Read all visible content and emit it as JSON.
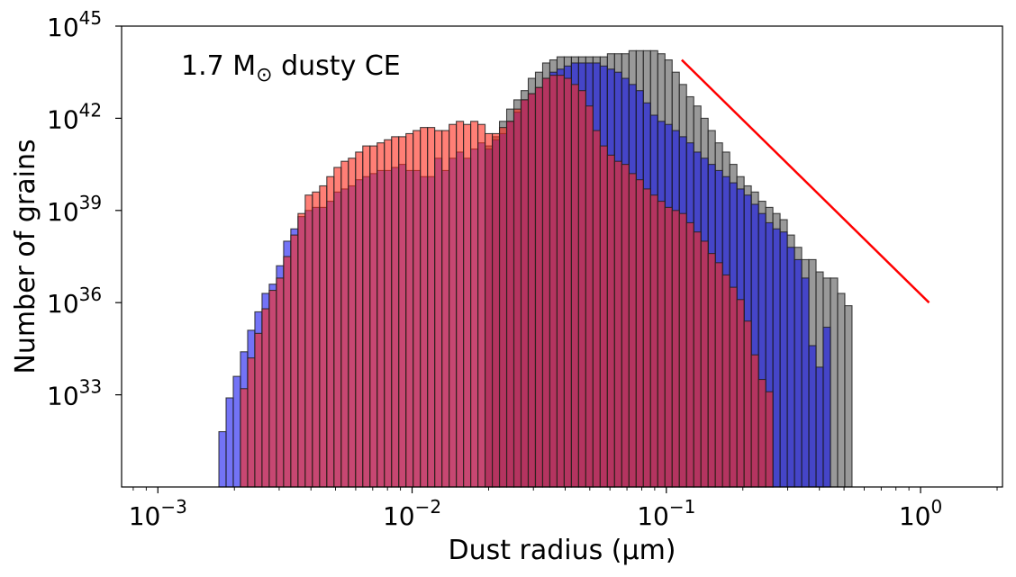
{
  "chart_data": {
    "type": "bar",
    "annotation": {
      "text": "1.7 M",
      "sub": "⊙",
      "tail": " dusty CE"
    },
    "xlabel": "Dust radius (μm)",
    "ylabel": "Number of grains",
    "xscale": "log",
    "yscale": "log",
    "xlim": [
      0.00072,
      2.1
    ],
    "ylim": [
      1e+30,
      1e+45
    ],
    "x_ticks": [
      {
        "value": 0.001,
        "base": "10",
        "exp": "−3"
      },
      {
        "value": 0.01,
        "base": "10",
        "exp": "−2"
      },
      {
        "value": 0.1,
        "base": "10",
        "exp": "−1"
      },
      {
        "value": 1,
        "base": "10",
        "exp": "0"
      }
    ],
    "y_ticks": [
      {
        "value": 1e+33,
        "base": "10",
        "exp": "33"
      },
      {
        "value": 1e+36,
        "base": "10",
        "exp": "36"
      },
      {
        "value": 1e+39,
        "base": "10",
        "exp": "39"
      },
      {
        "value": 1e+42,
        "base": "10",
        "exp": "42"
      },
      {
        "value": 1e+45,
        "base": "10",
        "exp": "45"
      }
    ],
    "bins": {
      "log10_start": -2.76,
      "log10_step": 0.0283
    },
    "series": [
      {
        "color": "#808080",
        "fill_opacity": 0.8,
        "start_bin": 37,
        "log10_values": [
          41.1,
          41.4,
          41.9,
          42.3,
          42.6,
          42.9,
          43.3,
          43.5,
          43.8,
          43.9,
          44.0,
          44.0,
          44.0,
          44.0,
          44.0,
          44.0,
          44.0,
          44.1,
          44.1,
          44.1,
          44.2,
          44.2,
          44.2,
          44.2,
          44.1,
          43.9,
          43.5,
          43.1,
          42.7,
          42.4,
          42.0,
          41.6,
          41.2,
          40.9,
          40.5,
          40.1,
          39.8,
          39.6,
          39.3,
          39.1,
          38.9,
          38.7,
          38.2,
          37.8,
          37.4,
          37.4,
          37.0,
          36.8,
          36.8,
          36.3,
          35.9
        ]
      },
      {
        "color": "#0000ee",
        "fill_opacity": 0.55,
        "start_bin": 0,
        "log10_values": [
          31.8,
          32.9,
          33.6,
          34.4,
          35.1,
          35.7,
          36.3,
          36.6,
          37.2,
          38.0,
          38.4,
          38.8,
          39.0,
          39.1,
          39.1,
          39.3,
          39.6,
          39.7,
          39.8,
          40.0,
          40.1,
          40.2,
          40.3,
          40.3,
          40.4,
          40.5,
          40.3,
          40.3,
          40.1,
          40.1,
          40.7,
          40.3,
          40.7,
          40.9,
          40.7,
          41.0,
          41.2,
          41.0,
          41.3,
          41.5,
          41.9,
          42.2,
          42.6,
          42.8,
          43.0,
          43.3,
          43.5,
          43.6,
          43.7,
          43.8,
          43.8,
          43.8,
          43.8,
          43.7,
          43.6,
          43.5,
          43.3,
          43.1,
          42.9,
          42.5,
          42.1,
          41.9,
          41.8,
          41.6,
          41.4,
          41.2,
          40.9,
          40.7,
          40.5,
          40.3,
          40.1,
          39.9,
          39.7,
          39.5,
          39.2,
          38.9,
          38.6,
          38.4,
          38.3,
          37.8,
          37.4,
          36.8,
          34.6,
          33.9,
          35.2
        ]
      },
      {
        "color": "#ff2a1a",
        "fill_opacity": 0.6,
        "start_bin": 3,
        "log10_values": [
          33.2,
          34.2,
          35.0,
          35.8,
          36.4,
          36.8,
          37.5,
          38.2,
          38.9,
          39.5,
          39.6,
          39.8,
          40.1,
          40.4,
          40.6,
          40.7,
          40.9,
          41.1,
          41.1,
          41.2,
          41.3,
          41.4,
          41.4,
          41.5,
          41.6,
          41.7,
          41.7,
          41.6,
          41.6,
          41.8,
          41.9,
          41.8,
          41.9,
          41.8,
          41.5,
          41.5,
          41.7,
          41.9,
          42.3,
          42.6,
          42.8,
          43.0,
          43.3,
          43.4,
          43.4,
          43.3,
          43.1,
          42.9,
          42.4,
          41.6,
          41.1,
          40.8,
          40.6,
          40.5,
          40.2,
          40.0,
          39.7,
          39.5,
          39.3,
          39.1,
          39.0,
          38.9,
          38.6,
          38.3,
          38.0,
          37.6,
          37.3,
          36.9,
          36.5,
          36.1,
          35.4,
          34.3,
          33.5,
          33.1
        ]
      }
    ],
    "overlap_color": "#b0265e",
    "fit_line": {
      "color": "#ff0000",
      "x": [
        0.115,
        1.08
      ],
      "log10_y": [
        43.9,
        36.0
      ]
    },
    "grid": false,
    "legend": "none"
  }
}
